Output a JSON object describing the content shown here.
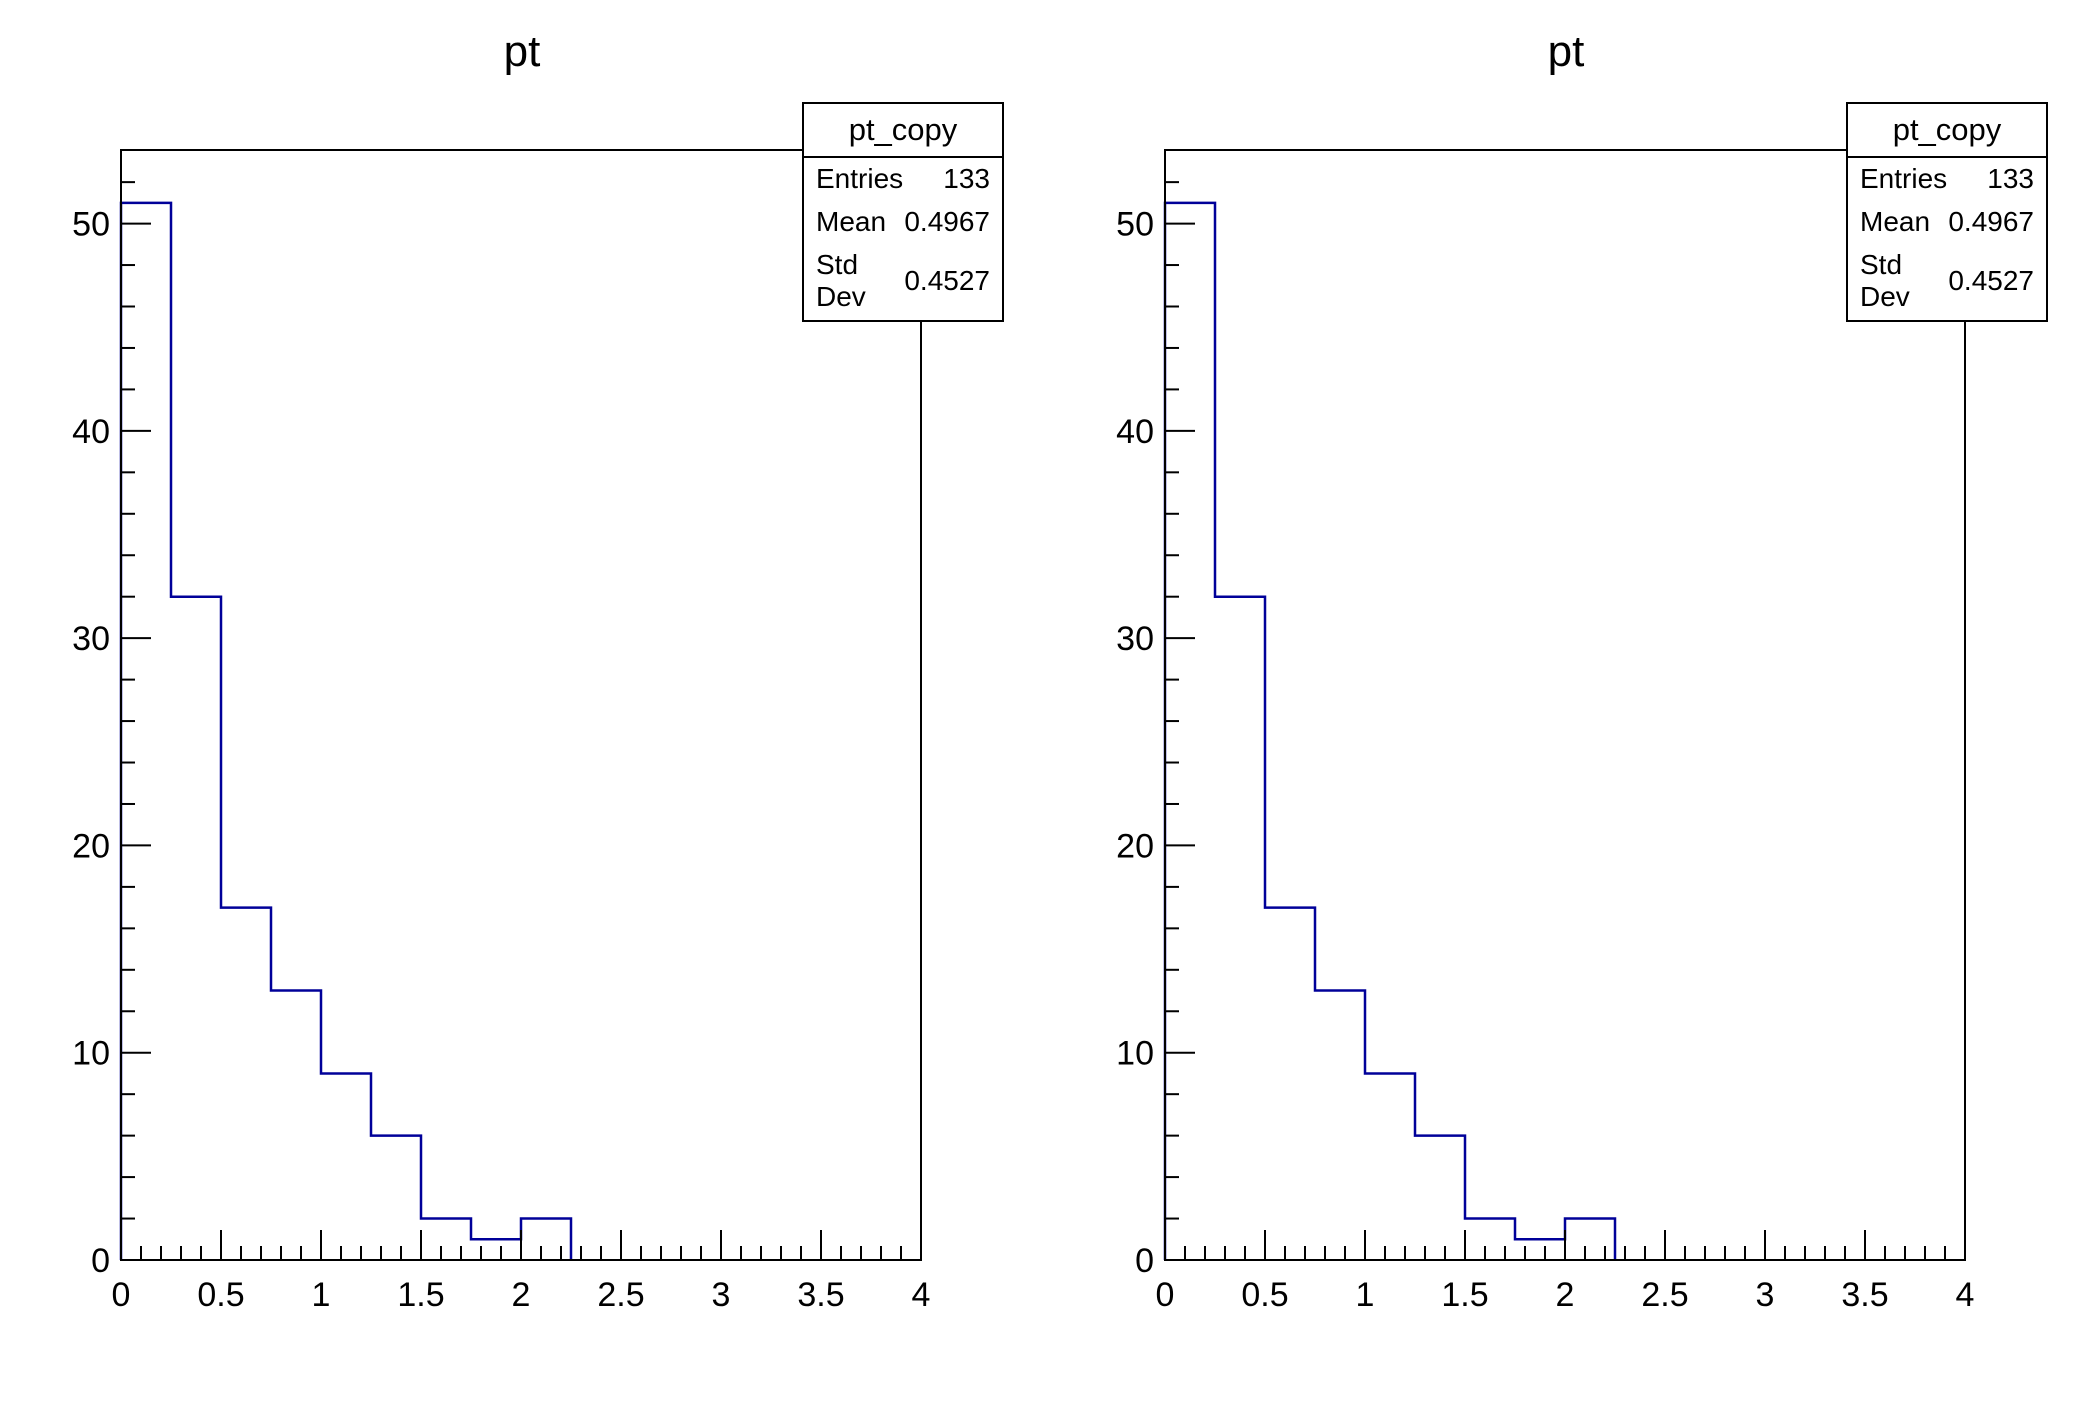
{
  "canvas": {
    "background_color": "#ffffff",
    "axis_color": "#000000",
    "text_color": "#000000"
  },
  "chart_data": [
    {
      "type": "bar",
      "subtype": "step-histogram",
      "title": "pt",
      "line_color": "#000099",
      "axis_color": "#000000",
      "bin_edges": [
        0,
        0.25,
        0.5,
        0.75,
        1.0,
        1.25,
        1.5,
        1.75,
        2.0,
        2.25
      ],
      "counts": [
        51,
        32,
        17,
        13,
        9,
        6,
        2,
        1,
        2
      ],
      "xlim": [
        0,
        4
      ],
      "ylim": [
        0,
        53.55
      ],
      "x_major_ticks": [
        0,
        0.5,
        1,
        1.5,
        2,
        2.5,
        3,
        3.5,
        4
      ],
      "x_tick_labels": [
        "0",
        "0.5",
        "1",
        "1.5",
        "2",
        "2.5",
        "3",
        "3.5",
        "4"
      ],
      "y_major_ticks": [
        0,
        10,
        20,
        30,
        40,
        50
      ],
      "y_tick_labels": [
        "0",
        "10",
        "20",
        "30",
        "40",
        "50"
      ],
      "x_minor_step": 0.1,
      "y_minor_step": 2,
      "grid": false,
      "legend": null,
      "xlabel": "",
      "ylabel": "",
      "stats_box": {
        "title": "pt_copy",
        "rows": [
          {
            "label": "Entries",
            "value": "133"
          },
          {
            "label": "Mean",
            "value": "0.4967"
          },
          {
            "label": "Std Dev",
            "value": "0.4527"
          }
        ]
      }
    },
    {
      "type": "bar",
      "subtype": "step-histogram",
      "title": "pt",
      "line_color": "#000099",
      "axis_color": "#000000",
      "bin_edges": [
        0,
        0.25,
        0.5,
        0.75,
        1.0,
        1.25,
        1.5,
        1.75,
        2.0,
        2.25
      ],
      "counts": [
        51,
        32,
        17,
        13,
        9,
        6,
        2,
        1,
        2
      ],
      "xlim": [
        0,
        4
      ],
      "ylim": [
        0,
        53.55
      ],
      "x_major_ticks": [
        0,
        0.5,
        1,
        1.5,
        2,
        2.5,
        3,
        3.5,
        4
      ],
      "x_tick_labels": [
        "0",
        "0.5",
        "1",
        "1.5",
        "2",
        "2.5",
        "3",
        "3.5",
        "4"
      ],
      "y_major_ticks": [
        0,
        10,
        20,
        30,
        40,
        50
      ],
      "y_tick_labels": [
        "0",
        "10",
        "20",
        "30",
        "40",
        "50"
      ],
      "x_minor_step": 0.1,
      "y_minor_step": 2,
      "grid": false,
      "legend": null,
      "xlabel": "",
      "ylabel": "",
      "stats_box": {
        "title": "pt_copy",
        "rows": [
          {
            "label": "Entries",
            "value": "133"
          },
          {
            "label": "Mean",
            "value": "0.4967"
          },
          {
            "label": "Std Dev",
            "value": "0.4527"
          }
        ]
      }
    }
  ]
}
